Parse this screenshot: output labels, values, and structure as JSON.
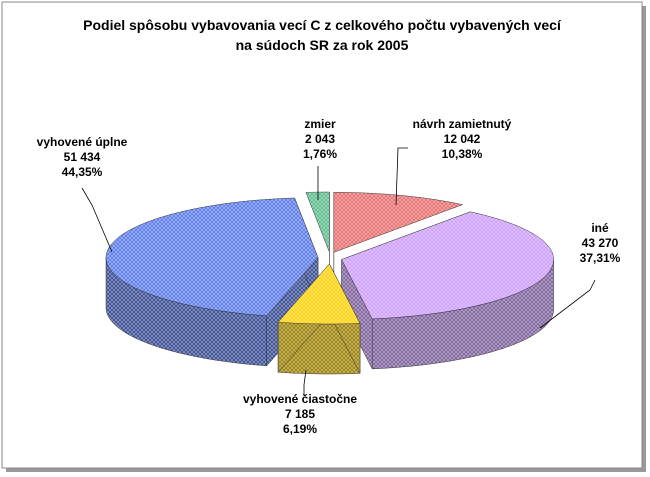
{
  "chart_data": {
    "type": "pie3d",
    "title": [
      "Podiel spôsobu vybavovania vecí C z celkového počtu vybavených vecí",
      "na súdoch SR za rok 2005"
    ],
    "categories": [
      "návrh zamietnutý",
      "iné",
      "vyhovené čiastočne",
      "vyhovené úplne",
      "zmier"
    ],
    "values": [
      12042,
      43270,
      7185,
      51434,
      2043
    ],
    "value_labels": [
      "12 042",
      "43 270",
      "7 185",
      "51 434",
      "2 043"
    ],
    "percentages": [
      10.38,
      37.31,
      6.19,
      44.35,
      1.76
    ],
    "percentage_labels": [
      "10,38%",
      "37,31%",
      "6,19%",
      "44,35%",
      "1,76%"
    ],
    "colors": [
      "#e86a6a",
      "#cc99ff",
      "#ffd000",
      "#5577ee",
      "#55bb88"
    ]
  }
}
